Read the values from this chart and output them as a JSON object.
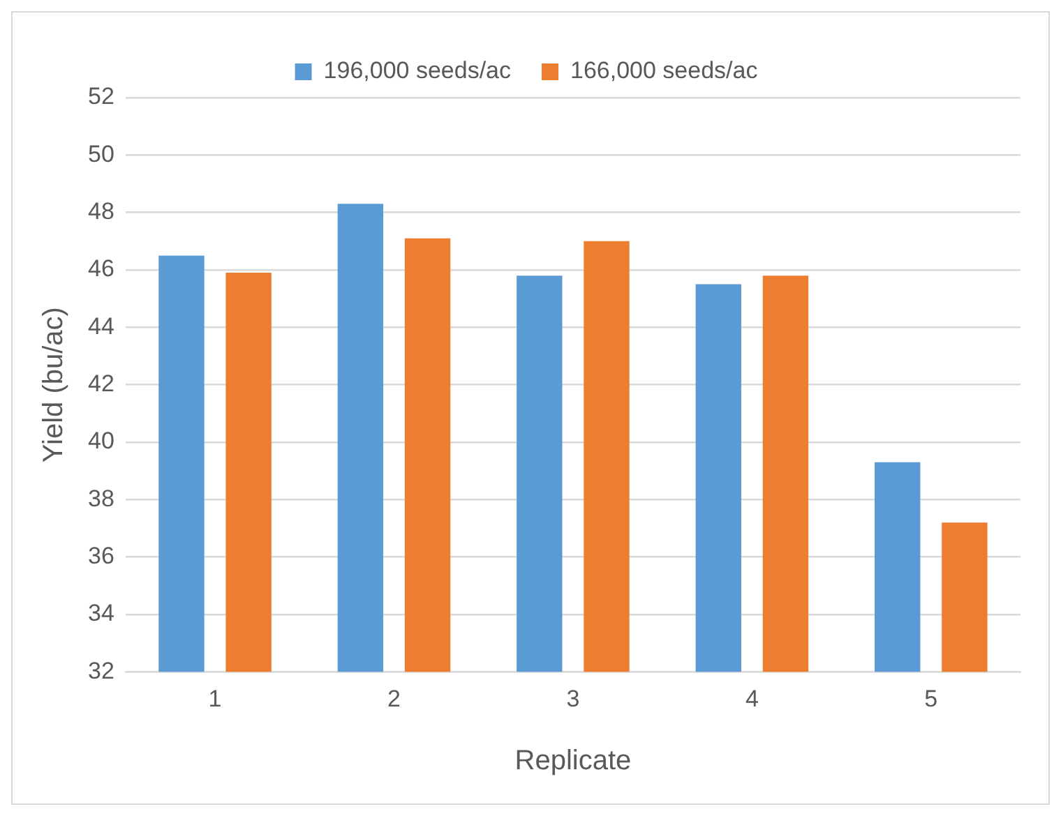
{
  "chart_data": {
    "type": "bar",
    "xlabel": "Replicate",
    "ylabel": "Yield (bu/ac)",
    "categories": [
      "1",
      "2",
      "3",
      "4",
      "5"
    ],
    "series": [
      {
        "name": "196,000 seeds/ac",
        "color": "#5b9bd5",
        "values": [
          46.5,
          48.3,
          45.8,
          45.5,
          39.3
        ]
      },
      {
        "name": "166,000 seeds/ac",
        "color": "#ed7d31",
        "values": [
          45.9,
          47.1,
          47.0,
          45.8,
          37.2
        ]
      }
    ],
    "ylim": [
      32,
      52
    ],
    "yticks": [
      32,
      34,
      36,
      38,
      40,
      42,
      44,
      46,
      48,
      50,
      52
    ],
    "grid": "y",
    "legend": "top"
  }
}
